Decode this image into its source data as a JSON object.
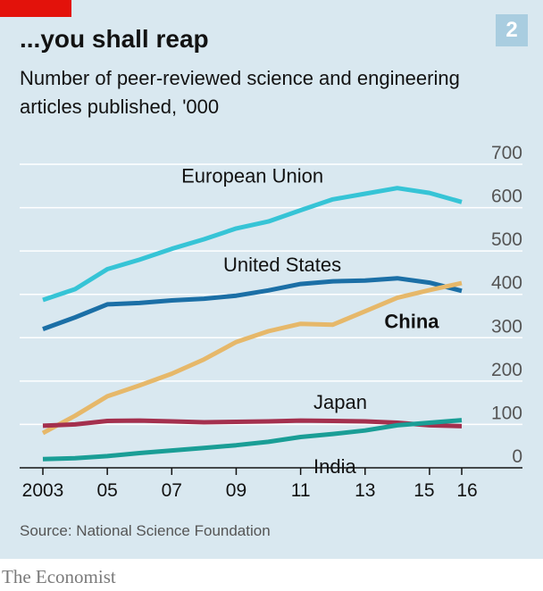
{
  "header": {
    "headline": "...you shall reap",
    "badge": "2",
    "subtitle": "Number of peer-reviewed science and engineering articles published, '000"
  },
  "footer": {
    "source": "Source: National Science Foundation",
    "brand": "The Economist"
  },
  "colors": {
    "background": "#d9e8f0",
    "gridline": "#ffffff",
    "axis": "#121212",
    "accent_red": "#e3120b"
  },
  "chart_data": {
    "type": "line",
    "title": "...you shall reap",
    "subtitle": "Number of peer-reviewed science and engineering articles published, '000",
    "x": [
      2003,
      2004,
      2005,
      2006,
      2007,
      2008,
      2009,
      2010,
      2011,
      2012,
      2013,
      2014,
      2015,
      2016
    ],
    "x_tick_values": [
      2003,
      2005,
      2007,
      2009,
      2011,
      2013,
      2015,
      2016
    ],
    "x_tick_labels": [
      "2003",
      "05",
      "07",
      "09",
      "11",
      "13",
      "15",
      "16"
    ],
    "xlim": [
      2003,
      2016
    ],
    "ylim": [
      0,
      700
    ],
    "y_ticks": [
      0,
      100,
      200,
      300,
      400,
      500,
      600,
      700
    ],
    "y_tick_labels": [
      "0",
      "100",
      "200",
      "300",
      "400",
      "500",
      "600",
      "700"
    ],
    "y_axis_side": "right",
    "grid": true,
    "legend": "direct labels",
    "series": [
      {
        "name": "European Union",
        "color": "#36c4d6",
        "bold": false,
        "values": [
          387,
          412,
          458,
          480,
          505,
          527,
          552,
          568,
          594,
          619,
          632,
          645,
          634,
          613
        ]
      },
      {
        "name": "United States",
        "color": "#1b6fa6",
        "bold": false,
        "values": [
          320,
          347,
          377,
          380,
          386,
          390,
          397,
          409,
          424,
          430,
          432,
          437,
          427,
          408
        ]
      },
      {
        "name": "China",
        "color": "#e6b86a",
        "bold": true,
        "values": [
          80,
          120,
          165,
          190,
          217,
          250,
          290,
          315,
          332,
          330,
          361,
          392,
          410,
          426
        ]
      },
      {
        "name": "Japan",
        "color": "#a4304e",
        "bold": false,
        "values": [
          97,
          100,
          108,
          109,
          107,
          105,
          106,
          107,
          109,
          108,
          107,
          104,
          98,
          96
        ]
      },
      {
        "name": "India",
        "color": "#1a9e96",
        "bold": false,
        "values": [
          20,
          22,
          27,
          34,
          40,
          46,
          52,
          60,
          71,
          78,
          86,
          98,
          104,
          110
        ]
      }
    ]
  }
}
